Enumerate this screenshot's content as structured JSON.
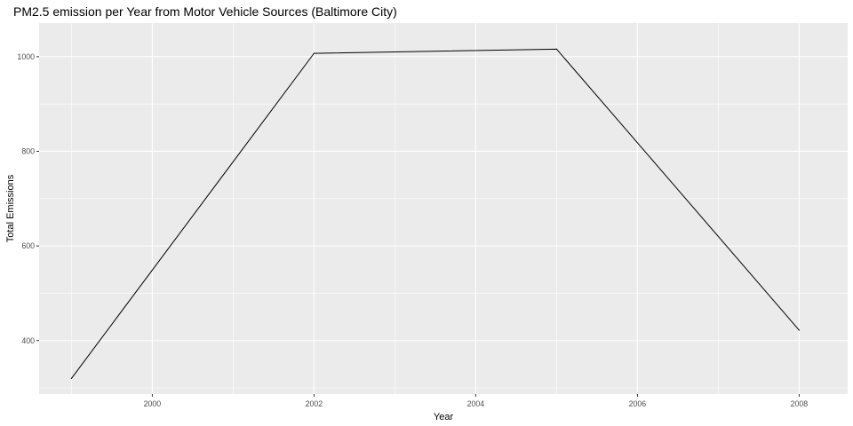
{
  "chart_data": {
    "type": "line",
    "title": "PM2.5 emission per Year from Motor Vehicle Sources (Baltimore City)",
    "xlabel": "Year",
    "ylabel": "Total Emissions",
    "x": [
      1999,
      2002,
      2005,
      2008
    ],
    "series": [
      {
        "values": [
          320,
          1007,
          1016,
          422
        ]
      }
    ],
    "xlim": [
      1998.6,
      2008.6
    ],
    "ylim": [
      287,
      1071
    ],
    "x_ticks": [
      2000,
      2002,
      2004,
      2006,
      2008
    ],
    "y_ticks": [
      400,
      600,
      800,
      1000
    ],
    "grid": true,
    "legend": "none",
    "colors": {
      "panel_background": "#ebebeb",
      "grid": "#ffffff",
      "line": "#000000",
      "tick_text": "#4d4d4d"
    }
  }
}
